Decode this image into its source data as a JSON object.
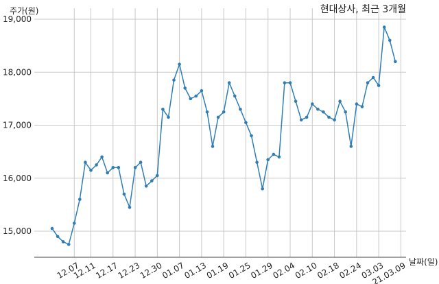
{
  "chart_data": {
    "type": "line",
    "title": "현대상사, 최근 3개월",
    "ylabel": "주가(원)",
    "xlabel": "날짜(일)",
    "ylim": [
      14500,
      19100
    ],
    "yticks": [
      15000,
      16000,
      17000,
      18000,
      19000
    ],
    "ytick_labels": [
      "15,000",
      "16,000",
      "17,000",
      "18,000",
      "19,000"
    ],
    "xticks": [
      {
        "label": "12.07",
        "index": 4
      },
      {
        "label": "12.11",
        "index": 7
      },
      {
        "label": "12.17",
        "index": 11
      },
      {
        "label": "12.23",
        "index": 15
      },
      {
        "label": "12.30",
        "index": 19
      },
      {
        "label": "01.07",
        "index": 23
      },
      {
        "label": "01.13",
        "index": 27
      },
      {
        "label": "01.19",
        "index": 31
      },
      {
        "label": "01.25",
        "index": 35
      },
      {
        "label": "01.29",
        "index": 39
      },
      {
        "label": "02.04",
        "index": 43
      },
      {
        "label": "02.10",
        "index": 47
      },
      {
        "label": "02.18",
        "index": 51
      },
      {
        "label": "02.24",
        "index": 55
      },
      {
        "label": "03.03",
        "index": 59
      },
      {
        "label": "21.03.09",
        "index": 63
      }
    ],
    "grid": true,
    "series": [
      {
        "color": "#2e7db5",
        "values": [
          15050,
          14900,
          14800,
          14750,
          15150,
          15600,
          16300,
          16150,
          16250,
          16400,
          16100,
          16200,
          16200,
          15700,
          15450,
          16200,
          16300,
          15850,
          15950,
          16050,
          17300,
          17150,
          17850,
          18150,
          17700,
          17500,
          17550,
          17650,
          17250,
          16600,
          17150,
          17250,
          17800,
          17550,
          17300,
          17050,
          16800,
          16300,
          15800,
          16350,
          16450,
          16400,
          17800,
          17800,
          17450,
          17100,
          17150,
          17400,
          17300,
          17250,
          17150,
          17100,
          17450,
          17250,
          16600,
          17400,
          17350,
          17800,
          17900,
          17750,
          18850,
          18600,
          18200
        ]
      }
    ]
  }
}
